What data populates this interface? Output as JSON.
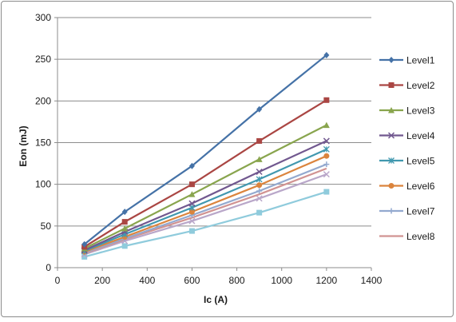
{
  "chart_data": {
    "type": "line",
    "title": "",
    "xlabel": "Ic (A)",
    "ylabel": "Eon (mJ)",
    "xlim": [
      0,
      1400
    ],
    "ylim": [
      0,
      300
    ],
    "x_ticks": [
      0,
      200,
      400,
      600,
      800,
      1000,
      1200,
      1400
    ],
    "y_ticks": [
      0,
      50,
      100,
      150,
      200,
      250,
      300
    ],
    "grid": "horizontal",
    "legend_position": "right",
    "x": [
      120,
      300,
      600,
      900,
      1200
    ],
    "series": [
      {
        "name": "Level1",
        "color": "#4572a7",
        "marker": "diamond",
        "values": [
          28,
          67,
          122,
          190,
          255
        ]
      },
      {
        "name": "Level2",
        "color": "#aa4643",
        "marker": "square",
        "values": [
          25,
          55,
          100,
          152,
          201
        ]
      },
      {
        "name": "Level3",
        "color": "#89a54e",
        "marker": "triangle",
        "values": [
          23,
          47,
          88,
          130,
          171
        ]
      },
      {
        "name": "Level4",
        "color": "#71588f",
        "marker": "x",
        "values": [
          21,
          43,
          77,
          115,
          152
        ]
      },
      {
        "name": "Level5",
        "color": "#4198af",
        "marker": "star",
        "values": [
          20,
          40,
          72,
          106,
          142
        ]
      },
      {
        "name": "Level6",
        "color": "#db843d",
        "marker": "circle",
        "values": [
          19,
          37,
          67,
          99,
          134
        ]
      },
      {
        "name": "Level7",
        "color": "#93a9cf",
        "marker": "plus",
        "values": [
          18,
          35,
          63,
          92,
          124
        ]
      },
      {
        "name": "Level8",
        "color": "#d19392",
        "marker": "none",
        "values": [
          17,
          34,
          60,
          88,
          119
        ]
      },
      {
        "name": "",
        "color": "#b9a7c9",
        "marker": "x",
        "values": [
          16,
          32,
          56,
          83,
          112
        ]
      },
      {
        "name": "",
        "color": "#8fcbdc",
        "marker": "square",
        "values": [
          13,
          26,
          44,
          66,
          91
        ]
      }
    ]
  }
}
